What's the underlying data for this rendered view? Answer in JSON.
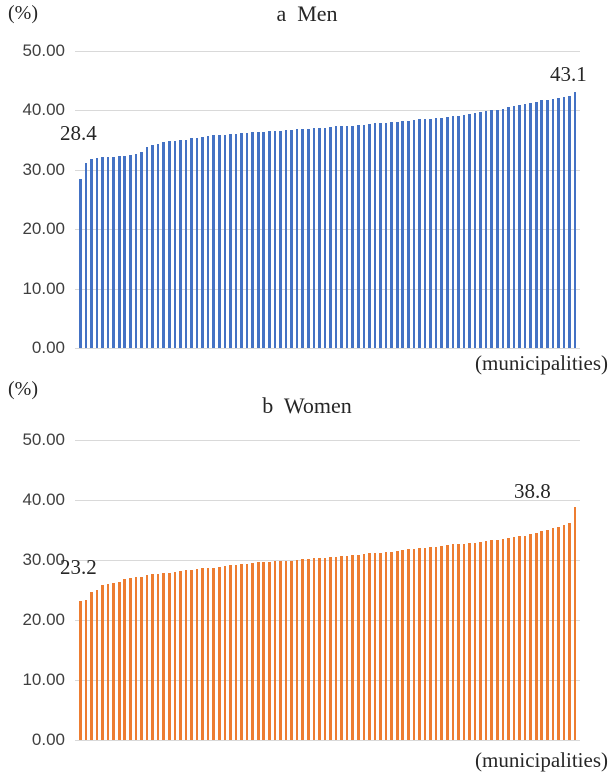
{
  "chart_data": [
    {
      "type": "bar",
      "title": "a  Men",
      "ylabel": "(%)",
      "xlabel": "(municipalities)",
      "ylim": [
        0,
        50
      ],
      "ytick_labels": [
        "50.00",
        "40.00",
        "30.00",
        "20.00",
        "10.00",
        "0.00"
      ],
      "grid": true,
      "legend": "none",
      "bar_color": "#4472C4",
      "min_label": "28.4",
      "max_label": "43.1",
      "values": [
        28.4,
        31.2,
        31.9,
        32.0,
        32.1,
        32.2,
        32.2,
        32.3,
        32.4,
        32.5,
        32.6,
        33.0,
        33.8,
        34.2,
        34.4,
        34.6,
        34.8,
        34.9,
        35.0,
        35.1,
        35.3,
        35.4,
        35.6,
        35.7,
        35.8,
        35.9,
        35.9,
        36.0,
        36.1,
        36.2,
        36.2,
        36.3,
        36.4,
        36.4,
        36.5,
        36.6,
        36.6,
        36.7,
        36.7,
        36.8,
        36.9,
        36.9,
        37.0,
        37.1,
        37.1,
        37.2,
        37.3,
        37.3,
        37.4,
        37.4,
        37.5,
        37.6,
        37.7,
        37.8,
        37.9,
        37.9,
        38.0,
        38.1,
        38.2,
        38.3,
        38.4,
        38.5,
        38.6,
        38.6,
        38.7,
        38.8,
        38.9,
        39.0,
        39.1,
        39.3,
        39.4,
        39.6,
        39.7,
        39.9,
        40.0,
        40.1,
        40.3,
        40.5,
        40.7,
        40.9,
        41.1,
        41.3,
        41.5,
        41.7,
        41.8,
        42.0,
        42.1,
        42.3,
        42.5,
        43.1
      ]
    },
    {
      "type": "bar",
      "title": "b  Women",
      "ylabel": "(%)",
      "xlabel": "(municipalities)",
      "ylim": [
        0,
        50
      ],
      "ytick_labels": [
        "50.00",
        "40.00",
        "30.00",
        "20.00",
        "10.00",
        "0.00"
      ],
      "grid": true,
      "legend": "none",
      "bar_color": "#ED7D31",
      "min_label": "23.2",
      "max_label": "38.8",
      "values": [
        23.2,
        23.4,
        24.6,
        25.0,
        25.8,
        26.0,
        26.2,
        26.4,
        26.9,
        27.0,
        27.1,
        27.2,
        27.5,
        27.6,
        27.7,
        27.8,
        27.9,
        28.0,
        28.2,
        28.3,
        28.4,
        28.5,
        28.6,
        28.6,
        28.7,
        28.9,
        29.0,
        29.1,
        29.2,
        29.3,
        29.4,
        29.5,
        29.6,
        29.6,
        29.7,
        29.8,
        29.8,
        29.9,
        29.9,
        30.0,
        30.2,
        30.2,
        30.3,
        30.3,
        30.4,
        30.5,
        30.5,
        30.6,
        30.7,
        30.8,
        30.9,
        31.0,
        31.1,
        31.2,
        31.2,
        31.3,
        31.4,
        31.5,
        31.6,
        31.8,
        31.9,
        32.0,
        32.0,
        32.1,
        32.2,
        32.4,
        32.5,
        32.6,
        32.7,
        32.7,
        32.8,
        32.9,
        33.0,
        33.1,
        33.3,
        33.3,
        33.5,
        33.6,
        33.8,
        34.0,
        34.0,
        34.3,
        34.5,
        34.8,
        35.0,
        35.3,
        35.5,
        35.8,
        36.2,
        38.8
      ]
    }
  ]
}
